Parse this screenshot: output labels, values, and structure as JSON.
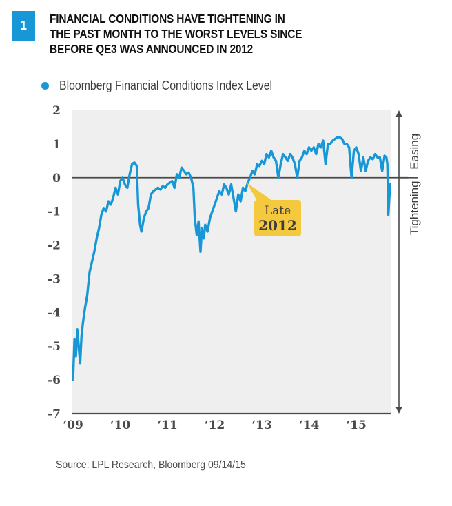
{
  "figure": {
    "number": "1",
    "title_lines": [
      "FINANCIAL CONDITIONS HAVE TIGHTENING IN",
      "THE PAST MONTH TO THE WORST LEVELS SINCE",
      "BEFORE QE3 WAS ANNOUNCED IN 2012"
    ],
    "source": "Source: LPL Research, Bloomberg   09/14/15"
  },
  "colors": {
    "series": "#1797d6",
    "badge": "#1797d6",
    "plot_bg": "#efefef",
    "axis": "#4a4a4c",
    "callout": "#f5c93e"
  },
  "chart_data": {
    "type": "line",
    "title": "FINANCIAL CONDITIONS HAVE TIGHTENING IN THE PAST MONTH TO THE WORST LEVELS SINCE BEFORE QE3 WAS ANNOUNCED IN 2012",
    "xlabel": "",
    "ylabel": "",
    "xlim": [
      2009.0,
      2015.72
    ],
    "ylim": [
      -7,
      2
    ],
    "yticks": [
      2,
      1,
      0,
      -1,
      -2,
      -3,
      -4,
      -5,
      -6,
      -7
    ],
    "ytick_labels": [
      "2",
      "1",
      "0",
      "-1",
      "-2",
      "-3",
      "-4",
      "-5",
      "-6",
      "-7"
    ],
    "xticks": [
      2009,
      2010,
      2011,
      2012,
      2013,
      2014,
      2015
    ],
    "xtick_labels": [
      "‘09",
      "‘10",
      "‘11",
      "‘12",
      "‘13",
      "‘14",
      "‘15"
    ],
    "grid": false,
    "reference_line": 0,
    "legend": {
      "position": "top-left",
      "entries": [
        "Bloomberg Financial Conditions Index Level"
      ]
    },
    "side_labels": {
      "up": "Easing",
      "down": "Tightening"
    },
    "annotation": {
      "text_lines": [
        "Late",
        "2012"
      ],
      "x": 2012.68,
      "y": -0.15
    },
    "series": [
      {
        "name": "Bloomberg Financial Conditions Index Level",
        "x": [
          2009.0,
          2009.03,
          2009.06,
          2009.09,
          2009.12,
          2009.15,
          2009.18,
          2009.21,
          2009.25,
          2009.3,
          2009.35,
          2009.4,
          2009.45,
          2009.5,
          2009.55,
          2009.6,
          2009.65,
          2009.7,
          2009.75,
          2009.8,
          2009.85,
          2009.9,
          2009.95,
          2010.0,
          2010.05,
          2010.1,
          2010.15,
          2010.2,
          2010.25,
          2010.3,
          2010.35,
          2010.38,
          2010.42,
          2010.45,
          2010.5,
          2010.55,
          2010.6,
          2010.65,
          2010.7,
          2010.75,
          2010.8,
          2010.85,
          2010.9,
          2010.95,
          2011.0,
          2011.05,
          2011.1,
          2011.15,
          2011.2,
          2011.25,
          2011.3,
          2011.35,
          2011.4,
          2011.45,
          2011.5,
          2011.55,
          2011.58,
          2011.62,
          2011.66,
          2011.7,
          2011.73,
          2011.77,
          2011.8,
          2011.85,
          2011.9,
          2011.95,
          2012.0,
          2012.05,
          2012.1,
          2012.15,
          2012.2,
          2012.25,
          2012.3,
          2012.35,
          2012.4,
          2012.45,
          2012.5,
          2012.55,
          2012.6,
          2012.65,
          2012.7,
          2012.75,
          2012.8,
          2012.85,
          2012.9,
          2012.95,
          2013.0,
          2013.05,
          2013.1,
          2013.15,
          2013.2,
          2013.25,
          2013.3,
          2013.35,
          2013.4,
          2013.45,
          2013.5,
          2013.55,
          2013.6,
          2013.65,
          2013.7,
          2013.75,
          2013.8,
          2013.85,
          2013.9,
          2013.95,
          2014.0,
          2014.05,
          2014.1,
          2014.15,
          2014.2,
          2014.25,
          2014.3,
          2014.35,
          2014.4,
          2014.45,
          2014.5,
          2014.55,
          2014.6,
          2014.65,
          2014.7,
          2014.75,
          2014.8,
          2014.85,
          2014.9,
          2014.95,
          2015.0,
          2015.05,
          2015.1,
          2015.15,
          2015.2,
          2015.25,
          2015.3,
          2015.35,
          2015.4,
          2015.45,
          2015.5,
          2015.55,
          2015.6,
          2015.64,
          2015.66,
          2015.68,
          2015.7,
          2015.72
        ],
        "values": [
          -6.0,
          -4.8,
          -5.3,
          -4.5,
          -5.0,
          -5.5,
          -4.7,
          -4.3,
          -3.9,
          -3.5,
          -2.8,
          -2.5,
          -2.2,
          -1.8,
          -1.5,
          -1.1,
          -0.9,
          -1.0,
          -0.7,
          -0.8,
          -0.6,
          -0.3,
          -0.5,
          -0.1,
          0.0,
          -0.2,
          -0.3,
          0.1,
          0.4,
          0.45,
          0.35,
          -0.8,
          -1.4,
          -1.6,
          -1.2,
          -1.0,
          -0.9,
          -0.5,
          -0.4,
          -0.35,
          -0.3,
          -0.35,
          -0.25,
          -0.3,
          -0.2,
          -0.15,
          -0.1,
          -0.3,
          0.1,
          0.0,
          0.3,
          0.2,
          0.1,
          0.15,
          0.0,
          -0.3,
          -1.2,
          -1.7,
          -1.3,
          -2.2,
          -1.5,
          -1.8,
          -1.4,
          -1.6,
          -1.2,
          -1.0,
          -0.8,
          -0.6,
          -0.4,
          -0.5,
          -0.2,
          -0.3,
          -0.5,
          -0.2,
          -0.6,
          -1.0,
          -0.5,
          -0.7,
          -0.3,
          -0.4,
          -0.15,
          0.0,
          0.2,
          0.1,
          0.4,
          0.35,
          0.5,
          0.4,
          0.7,
          0.6,
          0.8,
          0.6,
          0.5,
          0.0,
          0.4,
          0.7,
          0.6,
          0.5,
          0.7,
          0.6,
          0.4,
          0.0,
          0.5,
          0.6,
          0.8,
          0.7,
          0.9,
          0.8,
          0.9,
          0.7,
          1.0,
          0.9,
          1.1,
          0.4,
          1.0,
          1.0,
          1.1,
          1.15,
          1.2,
          1.2,
          1.15,
          1.0,
          1.0,
          0.9,
          0.0,
          0.8,
          0.9,
          0.7,
          0.2,
          0.6,
          0.2,
          0.5,
          0.6,
          0.55,
          0.7,
          0.6,
          0.6,
          0.2,
          0.65,
          0.6,
          0.4,
          -1.1,
          -0.6,
          -0.2
        ]
      }
    ]
  }
}
